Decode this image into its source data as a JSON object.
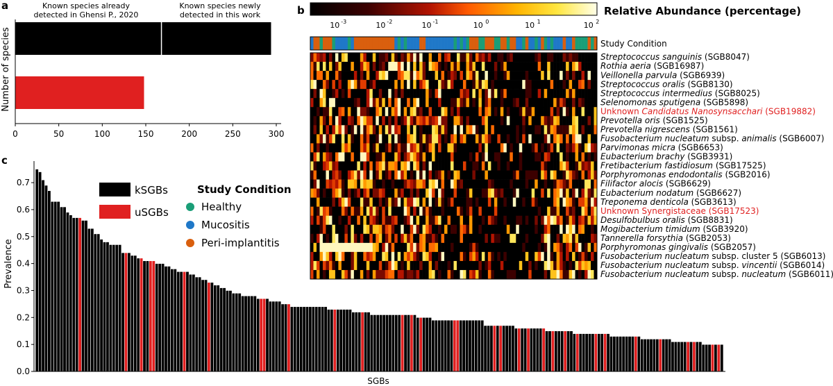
{
  "panel_labels": {
    "a": "a",
    "b": "b",
    "c": "c"
  },
  "colors": {
    "known": "#000000",
    "unknown": "#e02020",
    "healthy": "#1a9e77",
    "mucositis": "#1f78c8",
    "peri_implantitis": "#d95f0e"
  },
  "chart_data": [
    {
      "id": "a",
      "type": "bar",
      "orientation": "horizontal",
      "ylabel": "Number of species",
      "xlim": [
        0,
        300
      ],
      "xticks": [
        0,
        50,
        100,
        150,
        200,
        250,
        300
      ],
      "bars": [
        {
          "segments": [
            {
              "label": "Known species already detected in Ghensi P., 2020",
              "value": 168
            },
            {
              "label": "Known species newly detected in this work",
              "value": 126
            }
          ],
          "color": "#000000"
        },
        {
          "segments": [
            {
              "label": "",
              "value": 148
            }
          ],
          "color": "#e02020"
        }
      ]
    },
    {
      "id": "b",
      "type": "heatmap",
      "colorbar_title": "Relative Abundance (percentage)",
      "colorbar_ticks": [
        {
          "label": "10",
          "exp": "-3"
        },
        {
          "label": "10",
          "exp": "-2"
        },
        {
          "label": "10",
          "exp": "-1"
        },
        {
          "label": "10",
          "exp": "0"
        },
        {
          "label": "10",
          "exp": "1"
        },
        {
          "label": "10",
          "exp": "2"
        }
      ],
      "condition_label": "Study Condition",
      "n_samples": 92,
      "rows": [
        {
          "it": "Streptococcus sanguinis",
          "rest": " (SGB8047)",
          "unknown": false
        },
        {
          "it": "Rothia aeria",
          "rest": " (SGB16987)",
          "unknown": false
        },
        {
          "it": "Veillonella parvula",
          "rest": " (SGB6939)",
          "unknown": false
        },
        {
          "it": "Streptococcus oralis",
          "rest": " (SGB8130)",
          "unknown": false
        },
        {
          "it": "Streptococcus intermedius",
          "rest": " (SGB8025)",
          "unknown": false
        },
        {
          "it": "Selenomonas sputigena",
          "rest": " (SGB5898)",
          "unknown": false
        },
        {
          "pre": "Unknown ",
          "it": "Candidatus Nanosynsacchari",
          "rest": " (SGB19882)",
          "unknown": true
        },
        {
          "it": "Prevotella oris",
          "rest": " (SGB1525)",
          "unknown": false
        },
        {
          "it": "Prevotella nigrescens",
          "rest": " (SGB1561)",
          "unknown": false
        },
        {
          "it": "Fusobacterium nucleatum",
          "rest": " subsp. ",
          "it2": "animalis",
          "rest2": " (SGB6007)",
          "unknown": false
        },
        {
          "it": "Parvimonas micra",
          "rest": " (SGB6653)",
          "unknown": false
        },
        {
          "it": "Eubacterium brachy",
          "rest": " (SGB3931)",
          "unknown": false
        },
        {
          "it": "Fretibacterium fastidiosum",
          "rest": " (SGB17525)",
          "unknown": false
        },
        {
          "it": "Porphyromonas endodontalis",
          "rest": " (SGB2016)",
          "unknown": false
        },
        {
          "it": "Filifactor alocis",
          "rest": " (SGB6629)",
          "unknown": false
        },
        {
          "it": "Eubacterium nodatum",
          "rest": " (SGB6627)",
          "unknown": false
        },
        {
          "it": "Treponema denticola",
          "rest": " (SGB3613)",
          "unknown": false
        },
        {
          "pre": "Unknown Synergistaceae (SGB17523)",
          "it": "",
          "rest": "",
          "unknown": true
        },
        {
          "it": "Desulfobulbus oralis",
          "rest": " (SGB8831)",
          "unknown": false
        },
        {
          "it": "Mogibacterium timidum",
          "rest": " (SGB3920)",
          "unknown": false
        },
        {
          "it": "Tannerella forsythia",
          "rest": " (SGB2053)",
          "unknown": false
        },
        {
          "it": "Porphyromonas gingivalis",
          "rest": " (SGB2057)",
          "unknown": false
        },
        {
          "it": "Fusobacterium nucleatum",
          "rest": " subsp. cluster 5 (SGB6013)",
          "unknown": false
        },
        {
          "it": "Fusobacterium nucleatum",
          "rest": " subsp. ",
          "it2": "vincentii",
          "rest2": " (SGB6014)",
          "unknown": false
        },
        {
          "it": "Fusobacterium nucleatum",
          "rest": " subsp. ",
          "it2": "nucleatum",
          "rest2": " (SGB6011)",
          "unknown": false
        }
      ]
    },
    {
      "id": "c",
      "type": "bar",
      "xlabel": "SGBs",
      "ylabel": "Prevalence",
      "ylim": [
        0,
        0.78
      ],
      "yticks": [
        0.0,
        0.1,
        0.2,
        0.3,
        0.4,
        0.5,
        0.6,
        0.7
      ],
      "legend": {
        "kSGBs": "kSGBs",
        "uSGBs": "uSGBs",
        "condition_title": "Study Condition",
        "healthy": "Healthy",
        "mucositis": "Mucositis",
        "peri_implantitis": "Peri-implantitis"
      },
      "values": [
        0.75,
        0.74,
        0.71,
        0.69,
        0.67,
        0.63,
        0.63,
        0.63,
        0.61,
        0.61,
        0.59,
        0.58,
        0.57,
        0.57,
        0.57,
        0.56,
        0.56,
        0.53,
        0.53,
        0.51,
        0.51,
        0.49,
        0.48,
        0.48,
        0.47,
        0.47,
        0.47,
        0.47,
        0.44,
        0.44,
        0.44,
        0.43,
        0.43,
        0.42,
        0.42,
        0.41,
        0.41,
        0.41,
        0.41,
        0.4,
        0.4,
        0.4,
        0.39,
        0.39,
        0.38,
        0.38,
        0.37,
        0.37,
        0.37,
        0.37,
        0.36,
        0.36,
        0.35,
        0.35,
        0.34,
        0.34,
        0.33,
        0.33,
        0.32,
        0.32,
        0.31,
        0.31,
        0.3,
        0.3,
        0.29,
        0.29,
        0.29,
        0.28,
        0.28,
        0.28,
        0.28,
        0.28,
        0.27,
        0.27,
        0.27,
        0.27,
        0.26,
        0.26,
        0.26,
        0.26,
        0.25,
        0.25,
        0.25,
        0.24,
        0.24,
        0.24,
        0.24,
        0.24,
        0.24,
        0.24,
        0.24,
        0.24,
        0.24,
        0.24,
        0.24,
        0.23,
        0.23,
        0.23,
        0.23,
        0.23,
        0.23,
        0.23,
        0.23,
        0.22,
        0.22,
        0.22,
        0.22,
        0.22,
        0.22,
        0.21,
        0.21,
        0.21,
        0.21,
        0.21,
        0.21,
        0.21,
        0.21,
        0.21,
        0.21,
        0.21,
        0.21,
        0.21,
        0.21,
        0.21,
        0.2,
        0.2,
        0.2,
        0.2,
        0.2,
        0.19,
        0.19,
        0.19,
        0.19,
        0.19,
        0.19,
        0.19,
        0.19,
        0.19,
        0.19,
        0.19,
        0.19,
        0.19,
        0.19,
        0.19,
        0.19,
        0.19,
        0.17,
        0.17,
        0.17,
        0.17,
        0.17,
        0.17,
        0.17,
        0.17,
        0.17,
        0.17,
        0.16,
        0.16,
        0.16,
        0.16,
        0.16,
        0.16,
        0.16,
        0.16,
        0.16,
        0.16,
        0.15,
        0.15,
        0.15,
        0.15,
        0.15,
        0.15,
        0.15,
        0.15,
        0.15,
        0.14,
        0.14,
        0.14,
        0.14,
        0.14,
        0.14,
        0.14,
        0.14,
        0.14,
        0.14,
        0.14,
        0.14,
        0.13,
        0.13,
        0.13,
        0.13,
        0.13,
        0.13,
        0.13,
        0.13,
        0.13,
        0.13,
        0.12,
        0.12,
        0.12,
        0.12,
        0.12,
        0.12,
        0.12,
        0.12,
        0.12,
        0.12,
        0.11,
        0.11,
        0.11,
        0.11,
        0.11,
        0.11,
        0.11,
        0.11,
        0.11,
        0.11,
        0.1,
        0.1,
        0.1,
        0.1,
        0.1,
        0.1,
        0.1
      ],
      "unknown_indices": [
        14,
        29,
        34,
        37,
        38,
        48,
        56,
        73,
        74,
        82,
        97,
        106,
        119,
        122,
        125,
        136,
        137,
        149,
        151,
        157,
        160,
        165,
        168,
        172,
        176,
        182,
        185,
        195,
        203,
        212,
        214,
        220,
        222
      ]
    }
  ]
}
